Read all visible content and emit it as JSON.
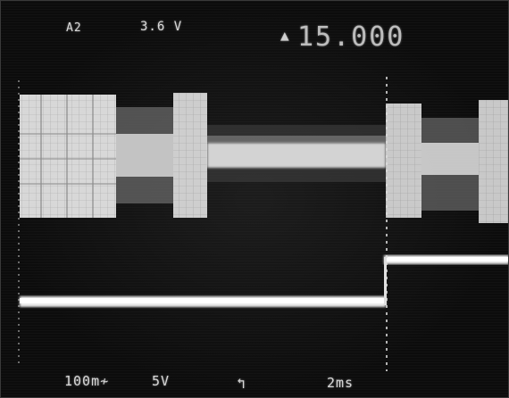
{
  "top_readout": {
    "channel": "A2",
    "volts_per_div": "3.6 V",
    "delay_icon": "delta-icon",
    "delay_value": "15.000"
  },
  "bottom_readout": {
    "ch1_scale": "100m≁",
    "ch2_scale": "5V",
    "trigger_icon": "trigger-slope-icon",
    "time_base": "2ms"
  },
  "colors": {
    "screen": "#0c0c0c",
    "phosphor": "#e6e6e6",
    "dim_phosphor": "#9a9a9a"
  }
}
